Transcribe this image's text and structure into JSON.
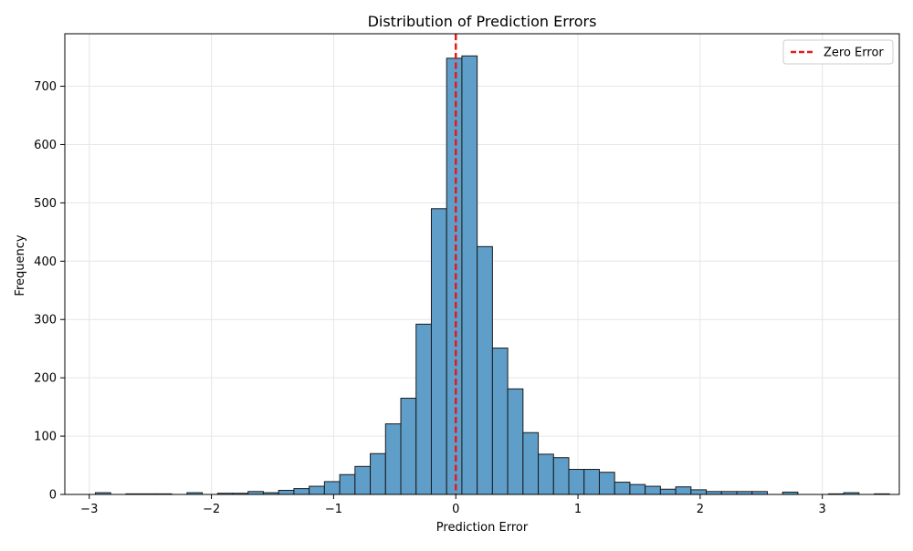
{
  "chart_data": {
    "type": "bar",
    "title": "Distribution of Prediction Errors",
    "xlabel": "Prediction Error",
    "ylabel": "Frequency",
    "xlim": [
      -3.2,
      3.63
    ],
    "ylim": [
      0,
      790
    ],
    "xticks": [
      -3,
      -2,
      -1,
      0,
      1,
      2,
      3
    ],
    "xtick_labels": [
      "−3",
      "−2",
      "−1",
      "0",
      "1",
      "2",
      "3"
    ],
    "yticks": [
      0,
      100,
      200,
      300,
      400,
      500,
      600,
      700
    ],
    "grid": true,
    "bin_width": 0.125,
    "bin_start": -2.95,
    "bin_edges_note": "bins start at -2.95 with width 0.125",
    "values": [
      3,
      0,
      1,
      1,
      1,
      0,
      3,
      0,
      2,
      2,
      5,
      3,
      7,
      10,
      14,
      22,
      34,
      48,
      70,
      121,
      165,
      292,
      490,
      748,
      752,
      425,
      251,
      181,
      106,
      69,
      63,
      43,
      43,
      38,
      21,
      17,
      14,
      9,
      13,
      8,
      5,
      5,
      5,
      5,
      0,
      4,
      0,
      0,
      1,
      3,
      0,
      1
    ],
    "bar_color": "#5f9ec9",
    "bar_edge_color": "#1a1a1a",
    "reference_line": {
      "x": 0,
      "color": "#e41a1c",
      "style": "dashed",
      "label": "Zero Error"
    },
    "legend": {
      "position": "top-right",
      "entries": [
        "Zero Error"
      ]
    }
  }
}
